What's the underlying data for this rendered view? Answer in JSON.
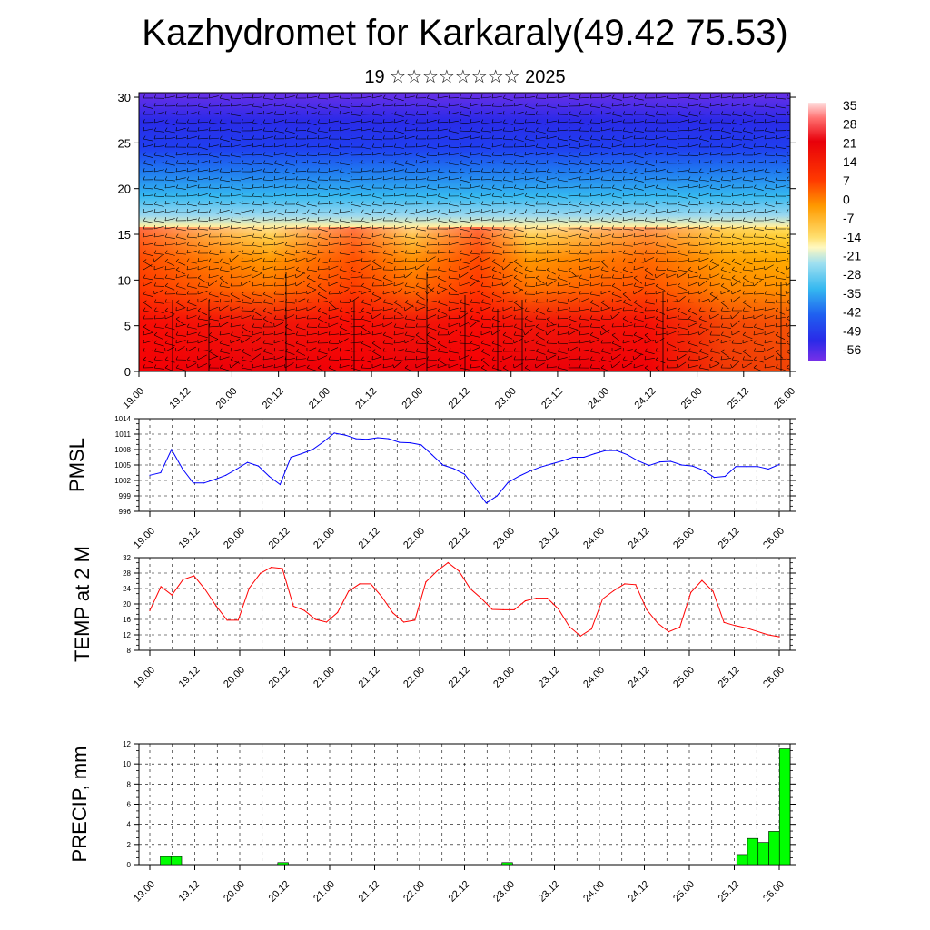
{
  "header": {
    "title": "Kazhydromet for Karkaraly(49.42 75.53)",
    "subtitle": "19 ☆☆☆☆☆☆☆☆ 2025"
  },
  "time_labels": [
    "19.00",
    "19.12",
    "20.00",
    "20.12",
    "21.00",
    "21.12",
    "22.00",
    "22.12",
    "23.00",
    "23.12",
    "24.00",
    "24.12",
    "25.00",
    "25.12",
    "26.00"
  ],
  "chart_data": [
    {
      "type": "heatmap",
      "title": "",
      "xlabel": "",
      "ylabel": "",
      "x_tick_labels": [
        "19.00",
        "19.12",
        "20.00",
        "20.12",
        "21.00",
        "21.12",
        "22.00",
        "22.12",
        "23.00",
        "23.12",
        "24.00",
        "24.12",
        "25.00",
        "25.12",
        "26.00"
      ],
      "y_ticks": [
        0,
        5,
        10,
        15,
        20,
        25,
        30
      ],
      "y_tick_labels": [
        "0",
        "5",
        "10",
        "15",
        "20",
        "25",
        "30"
      ],
      "ylim": [
        0,
        30.5
      ],
      "colorbar_labels": [
        "35",
        "28",
        "21",
        "14",
        "7",
        "0",
        "-7",
        "-14",
        "-21",
        "-28",
        "-35",
        "-42",
        "-49",
        "-56"
      ],
      "colorbar_range": [
        -63,
        42
      ],
      "wind_barbs": true,
      "colors": {
        "hot": "#e8000a",
        "warm": "#ff8a00",
        "mild": "#ffd230",
        "cool": "#35b8f0",
        "cold": "#1f3ff0",
        "coldest": "#6a20e8"
      }
    },
    {
      "type": "line",
      "ylabel": "PMSL",
      "x_tick_labels": [
        "19.00",
        "19.12",
        "20.00",
        "20.12",
        "21.00",
        "21.12",
        "22.00",
        "22.12",
        "23.00",
        "23.12",
        "24.00",
        "24.12",
        "25.00",
        "25.12",
        "26.00"
      ],
      "y_ticks": [
        996,
        999,
        1002,
        1005,
        1008,
        1011,
        1014
      ],
      "y_tick_labels": [
        "996",
        "999",
        "1002",
        "1005",
        "1008",
        "1011",
        "1014"
      ],
      "ylim": [
        996,
        1014
      ],
      "color": "#0000ff",
      "values": [
        1003.0,
        1003.5,
        1008.0,
        1004.3,
        1001.5,
        1001.5,
        1002.2,
        1003.0,
        1004.2,
        1005.5,
        1004.8,
        1002.8,
        1001.2,
        1006.5,
        1007.2,
        1008.0,
        1009.5,
        1011.2,
        1010.8,
        1010.1,
        1010.0,
        1010.3,
        1010.1,
        1009.4,
        1009.3,
        1008.9,
        1007.0,
        1005.0,
        1004.3,
        1003.2,
        1000.5,
        997.6,
        999.0,
        1001.6,
        1002.8,
        1003.8,
        1004.6,
        1005.2,
        1005.8,
        1006.5,
        1006.5,
        1007.2,
        1007.8,
        1007.8,
        1007.0,
        1005.8,
        1004.9,
        1005.6,
        1005.7,
        1005.0,
        1004.8,
        1004.0,
        1002.6,
        1002.8,
        1004.7,
        1004.7,
        1004.7,
        1004.2,
        1005.1
      ]
    },
    {
      "type": "line",
      "ylabel": "TEMP at 2 M",
      "x_tick_labels": [
        "19.00",
        "19.12",
        "20.00",
        "20.12",
        "21.00",
        "21.12",
        "22.00",
        "22.12",
        "23.00",
        "23.12",
        "24.00",
        "24.12",
        "25.00",
        "25.12",
        "26.00"
      ],
      "y_ticks": [
        8,
        12,
        16,
        20,
        24,
        28,
        32
      ],
      "y_tick_labels": [
        "8",
        "12",
        "16",
        "20",
        "24",
        "28",
        "32"
      ],
      "ylim": [
        8,
        32
      ],
      "color": "#ff0000",
      "values": [
        18.3,
        24.5,
        22.3,
        26.3,
        27.3,
        23.8,
        19.5,
        15.8,
        15.8,
        24.1,
        27.9,
        29.5,
        29.2,
        19.4,
        18.3,
        16.0,
        15.3,
        17.8,
        23.3,
        25.2,
        25.2,
        21.9,
        17.7,
        15.3,
        15.8,
        25.7,
        28.5,
        30.7,
        28.5,
        24.0,
        21.5,
        18.6,
        18.5,
        18.5,
        20.8,
        21.5,
        21.5,
        18.7,
        14.1,
        11.7,
        13.5,
        21.3,
        23.4,
        25.2,
        25.0,
        18.5,
        15.0,
        12.8,
        14.0,
        23.0,
        26.1,
        23.3,
        15.2,
        14.4,
        13.8,
        12.9,
        12.0,
        11.5
      ]
    },
    {
      "type": "bar",
      "ylabel": "PRECIP, mm",
      "x_tick_labels": [
        "19.00",
        "19.12",
        "20.00",
        "20.12",
        "21.00",
        "21.12",
        "22.00",
        "22.12",
        "23.00",
        "23.12",
        "24.00",
        "24.12",
        "25.00",
        "25.12",
        "26.00"
      ],
      "y_ticks": [
        0,
        2,
        4,
        6,
        8,
        10,
        12
      ],
      "y_tick_labels": [
        "0",
        "2",
        "4",
        "6",
        "8",
        "10",
        "12"
      ],
      "ylim": [
        0,
        12
      ],
      "color": "#00ff00",
      "values": [
        0,
        0,
        0.8,
        0.8,
        0,
        0,
        0,
        0,
        0,
        0,
        0,
        0,
        0,
        0.2,
        0,
        0,
        0,
        0,
        0,
        0,
        0,
        0,
        0,
        0,
        0,
        0,
        0,
        0,
        0,
        0,
        0,
        0,
        0,
        0,
        0.2,
        0,
        0,
        0,
        0,
        0,
        0,
        0,
        0,
        0,
        0,
        0,
        0,
        0,
        0,
        0,
        0,
        0,
        0,
        0,
        0,
        0,
        1.0,
        2.6,
        2.2,
        3.3,
        11.5
      ]
    }
  ]
}
